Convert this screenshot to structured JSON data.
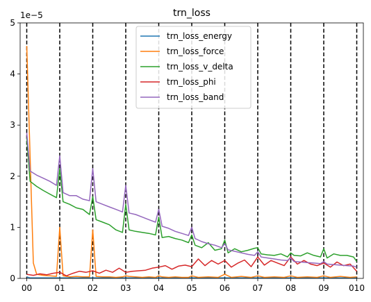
{
  "chart_data": {
    "type": "line",
    "title": "trn_loss",
    "xlabel": "",
    "ylabel": "",
    "y_offset_label": "1e−5",
    "xlim": [
      -0.2,
      10.2
    ],
    "ylim": [
      0,
      5e-05
    ],
    "x_ticks": [
      {
        "value": 0,
        "label": "00"
      },
      {
        "value": 1,
        "label": "01"
      },
      {
        "value": 2,
        "label": "02"
      },
      {
        "value": 3,
        "label": "03"
      },
      {
        "value": 4,
        "label": "04"
      },
      {
        "value": 5,
        "label": "05"
      },
      {
        "value": 6,
        "label": "06"
      },
      {
        "value": 7,
        "label": "07"
      },
      {
        "value": 8,
        "label": "08"
      },
      {
        "value": 9,
        "label": "09"
      },
      {
        "value": 10,
        "label": "010"
      }
    ],
    "y_ticks": [
      {
        "value": 0,
        "label": "0"
      },
      {
        "value": 1e-05,
        "label": "1"
      },
      {
        "value": 2e-05,
        "label": "2"
      },
      {
        "value": 3e-05,
        "label": "3"
      },
      {
        "value": 4e-05,
        "label": "4"
      },
      {
        "value": 5e-05,
        "label": "5"
      }
    ],
    "vertical_dashed_lines": [
      0,
      1,
      2,
      3,
      4,
      5,
      6,
      7,
      8,
      9,
      10
    ],
    "grid": false,
    "legend_position": "top-center",
    "series": [
      {
        "name": "trn_loss_energy",
        "color": "#1f77b4",
        "x": [
          0,
          0.1,
          0.5,
          1,
          1.5,
          2,
          2.5,
          3,
          3.5,
          4,
          4.5,
          5,
          5.5,
          6,
          6.5,
          7,
          7.5,
          8,
          8.5,
          9,
          9.5,
          10
        ],
        "y": [
          3e-07,
          1e-07,
          1e-07,
          1e-07,
          1e-07,
          1e-07,
          1e-07,
          1e-07,
          1e-07,
          1e-07,
          1e-07,
          1e-07,
          1e-07,
          1e-07,
          1e-07,
          1e-07,
          1e-07,
          1e-07,
          1e-07,
          1e-07,
          1e-07,
          1e-07
        ]
      },
      {
        "name": "trn_loss_force",
        "color": "#ff7f0e",
        "x": [
          0,
          0.2,
          0.3,
          0.5,
          0.7,
          0.9,
          1.0,
          1.1,
          1.3,
          1.5,
          1.7,
          1.9,
          2.0,
          2.1,
          2.3,
          2.5,
          2.7,
          2.9,
          3.0,
          3.1,
          3.3,
          3.5,
          3.7,
          3.9,
          4.0,
          4.1,
          4.3,
          4.5,
          4.7,
          4.9,
          5.0,
          5.2,
          5.5,
          5.8,
          6.0,
          6.2,
          6.5,
          6.8,
          7.0,
          7.2,
          7.5,
          7.8,
          8.0,
          8.2,
          8.5,
          8.8,
          9.0,
          9.2,
          9.5,
          9.8,
          10.0
        ],
        "y": [
          4.55e-05,
          3e-06,
          8e-07,
          6e-07,
          5e-07,
          4e-07,
          1e-05,
          5e-07,
          3e-07,
          4e-07,
          3e-07,
          3e-07,
          9.5e-06,
          4e-07,
          3e-07,
          3e-07,
          2e-07,
          3e-07,
          5e-07,
          4e-07,
          3e-07,
          2e-07,
          3e-07,
          2e-07,
          5e-07,
          3e-07,
          2e-07,
          3e-07,
          2e-07,
          2e-07,
          5e-07,
          2e-07,
          3e-07,
          2e-07,
          8e-07,
          2e-07,
          4e-07,
          2e-07,
          5e-07,
          2e-07,
          3e-07,
          2e-07,
          5e-07,
          2e-07,
          3e-07,
          2e-07,
          5e-07,
          2e-07,
          4e-07,
          2e-07,
          3e-07
        ]
      },
      {
        "name": "trn_loss_v_delta",
        "color": "#2ca02c",
        "x": [
          0,
          0.1,
          0.3,
          0.5,
          0.7,
          0.9,
          1.0,
          1.1,
          1.3,
          1.5,
          1.7,
          1.9,
          2.0,
          2.1,
          2.3,
          2.5,
          2.7,
          2.9,
          3.0,
          3.1,
          3.3,
          3.5,
          3.7,
          3.9,
          4.0,
          4.1,
          4.3,
          4.5,
          4.7,
          4.9,
          5.0,
          5.1,
          5.3,
          5.5,
          5.7,
          5.9,
          6.0,
          6.1,
          6.3,
          6.5,
          6.7,
          6.9,
          7.0,
          7.1,
          7.3,
          7.5,
          7.7,
          7.9,
          8.0,
          8.1,
          8.3,
          8.5,
          8.7,
          8.9,
          9.0,
          9.1,
          9.3,
          9.5,
          9.7,
          9.9,
          10.0
        ],
        "y": [
          2.75e-05,
          1.9e-05,
          1.8e-05,
          1.72e-05,
          1.65e-05,
          1.58e-05,
          2.15e-05,
          1.5e-05,
          1.45e-05,
          1.38e-05,
          1.35e-05,
          1.25e-05,
          1.6e-05,
          1.15e-05,
          1.1e-05,
          1.05e-05,
          9.5e-06,
          9e-06,
          1.45e-05,
          9.5e-06,
          9.2e-06,
          9e-06,
          8.8e-06,
          8.5e-06,
          1.2e-05,
          8e-06,
          8.2e-06,
          7.8e-06,
          7.5e-06,
          7e-06,
          8.5e-06,
          6.5e-06,
          6e-06,
          7e-06,
          5.5e-06,
          5.8e-06,
          7.5e-06,
          5e-06,
          5.8e-06,
          5.2e-06,
          5.5e-06,
          5.9e-06,
          6e-06,
          4.8e-06,
          4.6e-06,
          4.5e-06,
          4.8e-06,
          4.2e-06,
          5e-06,
          4.5e-06,
          4.4e-06,
          5e-06,
          4.5e-06,
          4.2e-06,
          5.8e-06,
          4e-06,
          4.8e-06,
          4.5e-06,
          4.5e-06,
          4.2e-06,
          3.3e-06
        ]
      },
      {
        "name": "trn_loss_phi",
        "color": "#d62728",
        "x": [
          0,
          0.2,
          0.4,
          0.6,
          0.8,
          1.0,
          1.2,
          1.4,
          1.6,
          1.8,
          2.0,
          2.2,
          2.4,
          2.6,
          2.8,
          3.0,
          3.2,
          3.4,
          3.6,
          3.8,
          4.0,
          4.2,
          4.4,
          4.6,
          4.8,
          5.0,
          5.2,
          5.4,
          5.6,
          5.8,
          6.0,
          6.2,
          6.4,
          6.6,
          6.8,
          7.0,
          7.2,
          7.4,
          7.6,
          7.8,
          8.0,
          8.2,
          8.4,
          8.6,
          8.8,
          9.0,
          9.2,
          9.4,
          9.6,
          9.8,
          10.0
        ],
        "y": [
          8e-07,
          6e-07,
          9e-07,
          7e-07,
          1e-06,
          1.2e-06,
          5e-07,
          1e-06,
          1.4e-06,
          1.2e-06,
          1.5e-06,
          1e-06,
          1.6e-06,
          1.2e-06,
          2e-06,
          1.2e-06,
          1.4e-06,
          1.5e-06,
          1.6e-06,
          2e-06,
          2.2e-06,
          2.5e-06,
          1.8e-06,
          2.4e-06,
          2.6e-06,
          2.3e-06,
          3.8e-06,
          2.5e-06,
          3.5e-06,
          2.8e-06,
          3.5e-06,
          2.2e-06,
          3e-06,
          3.6e-06,
          2.3e-06,
          4.2e-06,
          2.6e-06,
          3.5e-06,
          3e-06,
          2.5e-06,
          4.2e-06,
          2.8e-06,
          3.5e-06,
          2.8e-06,
          2.5e-06,
          3e-06,
          2.2e-06,
          3.2e-06,
          2.5e-06,
          2.8e-06,
          1.4e-06
        ]
      },
      {
        "name": "trn_loss_band",
        "color": "#9467bd",
        "x": [
          0,
          0.1,
          0.3,
          0.5,
          0.7,
          0.9,
          1.0,
          1.1,
          1.3,
          1.5,
          1.7,
          1.9,
          2.0,
          2.1,
          2.3,
          2.5,
          2.7,
          2.9,
          3.0,
          3.1,
          3.3,
          3.5,
          3.7,
          3.9,
          4.0,
          4.1,
          4.3,
          4.5,
          4.7,
          4.9,
          5.0,
          5.1,
          5.3,
          5.5,
          5.7,
          5.9,
          6.0,
          6.1,
          6.3,
          6.5,
          6.7,
          6.9,
          7.0,
          7.1,
          7.3,
          7.5,
          7.7,
          7.9,
          8.0,
          8.1,
          8.3,
          8.5,
          8.7,
          8.9,
          9.0,
          9.1,
          9.3,
          9.5,
          9.7,
          9.9,
          10.0
        ],
        "y": [
          2.85e-05,
          2.1e-05,
          2.02e-05,
          1.96e-05,
          1.9e-05,
          1.82e-05,
          2.4e-05,
          1.68e-05,
          1.62e-05,
          1.62e-05,
          1.55e-05,
          1.52e-05,
          2.15e-05,
          1.5e-05,
          1.45e-05,
          1.4e-05,
          1.35e-05,
          1.3e-05,
          1.82e-05,
          1.28e-05,
          1.25e-05,
          1.2e-05,
          1.15e-05,
          1.1e-05,
          1.35e-05,
          1.02e-05,
          9.8e-06,
          9.2e-06,
          8.8e-06,
          8.4e-06,
          1e-05,
          7.8e-06,
          7.2e-06,
          6.8e-06,
          6.5e-06,
          6e-06,
          6.8e-06,
          5.6e-06,
          5.3e-06,
          5e-06,
          4.7e-06,
          4.5e-06,
          5.2e-06,
          4.2e-06,
          4e-06,
          3.8e-06,
          3.6e-06,
          3.5e-06,
          4e-06,
          3.3e-06,
          3.2e-06,
          3.1e-06,
          3e-06,
          2.9e-06,
          3.3e-06,
          2.8e-06,
          2.7e-06,
          2.6e-06,
          2.5e-06,
          2.4e-06,
          2.2e-06
        ]
      }
    ]
  }
}
